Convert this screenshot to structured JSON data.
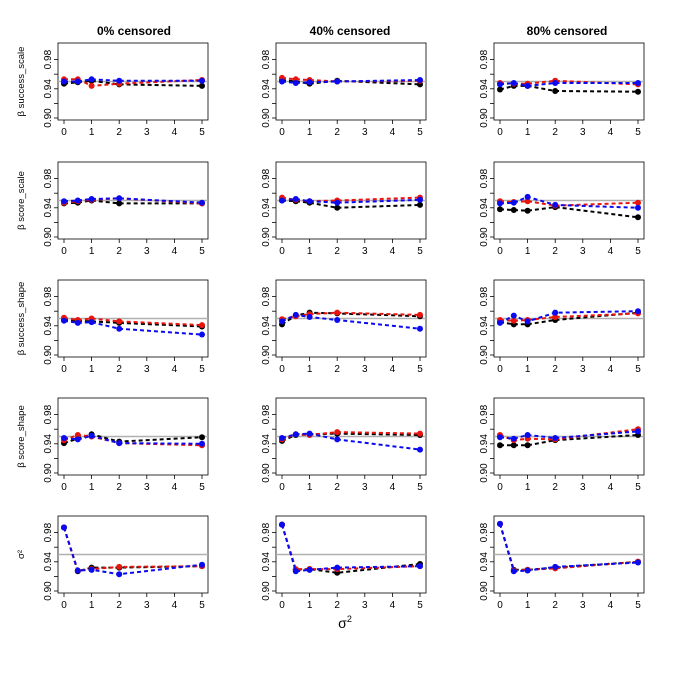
{
  "chart_data": {
    "type": "line",
    "layout": "grid 5 rows x 3 columns of small-multiple line plots",
    "column_titles": [
      "0% censored",
      "40% censored",
      "80% censored"
    ],
    "row_labels": [
      "β success_scale",
      "β score_scale",
      "β success_shape",
      "β score_shape",
      "σ²"
    ],
    "x": [
      0,
      0.5,
      1,
      2,
      5
    ],
    "x_ticks": [
      "0",
      "1",
      "2",
      "3",
      "4",
      "5"
    ],
    "y_ticks": [
      "0.90",
      "0.94",
      "0.98"
    ],
    "ylim": [
      0.9,
      1.0
    ],
    "xlim": [
      0,
      5
    ],
    "xlabel": "σ",
    "xlabel_sup": "2",
    "reference_line": 0.95,
    "reference_color": "#b0b0b0",
    "series_colors": [
      "#000000",
      "#e8150f",
      "#0a0af0"
    ],
    "panels": [
      [
        {
          "series": [
            [
              0.947,
              0.949,
              0.951,
              0.946,
              0.944
            ],
            [
              0.953,
              0.953,
              0.944,
              0.947,
              0.952
            ],
            [
              0.95,
              0.95,
              0.953,
              0.951,
              0.951
            ]
          ]
        },
        {
          "series": [
            [
              0.952,
              0.95,
              0.947,
              0.951,
              0.946
            ],
            [
              0.955,
              0.953,
              0.952,
              0.95,
              0.951
            ],
            [
              0.95,
              0.948,
              0.949,
              0.95,
              0.952
            ]
          ]
        },
        {
          "series": [
            [
              0.939,
              0.944,
              0.944,
              0.937,
              0.936
            ],
            [
              0.948,
              0.947,
              0.947,
              0.951,
              0.946
            ],
            [
              0.946,
              0.948,
              0.944,
              0.948,
              0.948
            ]
          ]
        }
      ],
      [
        {
          "series": [
            [
              0.946,
              0.947,
              0.95,
              0.946,
              0.946
            ],
            [
              0.947,
              0.949,
              0.951,
              0.953,
              0.946
            ],
            [
              0.949,
              0.95,
              0.952,
              0.953,
              0.947
            ]
          ]
        },
        {
          "series": [
            [
              0.95,
              0.949,
              0.947,
              0.94,
              0.944
            ],
            [
              0.954,
              0.951,
              0.949,
              0.95,
              0.954
            ],
            [
              0.95,
              0.952,
              0.949,
              0.947,
              0.951
            ]
          ]
        },
        {
          "series": [
            [
              0.938,
              0.937,
              0.936,
              0.941,
              0.927
            ],
            [
              0.949,
              0.948,
              0.949,
              0.943,
              0.947
            ],
            [
              0.946,
              0.947,
              0.955,
              0.944,
              0.94
            ]
          ]
        }
      ],
      [
        {
          "series": [
            [
              0.948,
              0.947,
              0.946,
              0.944,
              0.939
            ],
            [
              0.951,
              0.948,
              0.95,
              0.946,
              0.941
            ],
            [
              0.947,
              0.944,
              0.945,
              0.936,
              0.928
            ]
          ]
        },
        {
          "series": [
            [
              0.942,
              0.954,
              0.958,
              0.957,
              0.953
            ],
            [
              0.949,
              0.953,
              0.956,
              0.958,
              0.955
            ],
            [
              0.946,
              0.955,
              0.952,
              0.948,
              0.936
            ]
          ]
        },
        {
          "series": [
            [
              0.945,
              0.942,
              0.942,
              0.948,
              0.958
            ],
            [
              0.948,
              0.947,
              0.948,
              0.952,
              0.957
            ],
            [
              0.944,
              0.954,
              0.946,
              0.958,
              0.96
            ]
          ]
        }
      ],
      [
        {
          "series": [
            [
              0.941,
              0.947,
              0.953,
              0.943,
              0.949
            ],
            [
              0.945,
              0.952,
              0.95,
              0.941,
              0.938
            ],
            [
              0.948,
              0.946,
              0.951,
              0.941,
              0.94
            ]
          ]
        },
        {
          "series": [
            [
              0.944,
              0.952,
              0.953,
              0.954,
              0.952
            ],
            [
              0.946,
              0.953,
              0.952,
              0.956,
              0.954
            ],
            [
              0.948,
              0.953,
              0.954,
              0.946,
              0.932
            ]
          ]
        },
        {
          "series": [
            [
              0.938,
              0.938,
              0.938,
              0.945,
              0.952
            ],
            [
              0.952,
              0.945,
              0.947,
              0.946,
              0.96
            ],
            [
              0.949,
              0.947,
              0.952,
              0.948,
              0.957
            ]
          ]
        }
      ],
      [
        {
          "series": [
            [
              0.987,
              0.927,
              0.932,
              0.932,
              0.934
            ],
            [
              0.987,
              0.928,
              0.93,
              0.933,
              0.934
            ],
            [
              0.987,
              0.928,
              0.929,
              0.923,
              0.936
            ]
          ]
        },
        {
          "series": [
            [
              0.991,
              0.929,
              0.93,
              0.925,
              0.937
            ],
            [
              0.991,
              0.93,
              0.93,
              0.93,
              0.934
            ],
            [
              0.991,
              0.927,
              0.929,
              0.932,
              0.934
            ]
          ]
        },
        {
          "series": [
            [
              0.992,
              0.929,
              0.929,
              0.932,
              0.94
            ],
            [
              0.992,
              0.928,
              0.929,
              0.931,
              0.94
            ],
            [
              0.992,
              0.927,
              0.928,
              0.933,
              0.939
            ]
          ]
        }
      ]
    ]
  }
}
